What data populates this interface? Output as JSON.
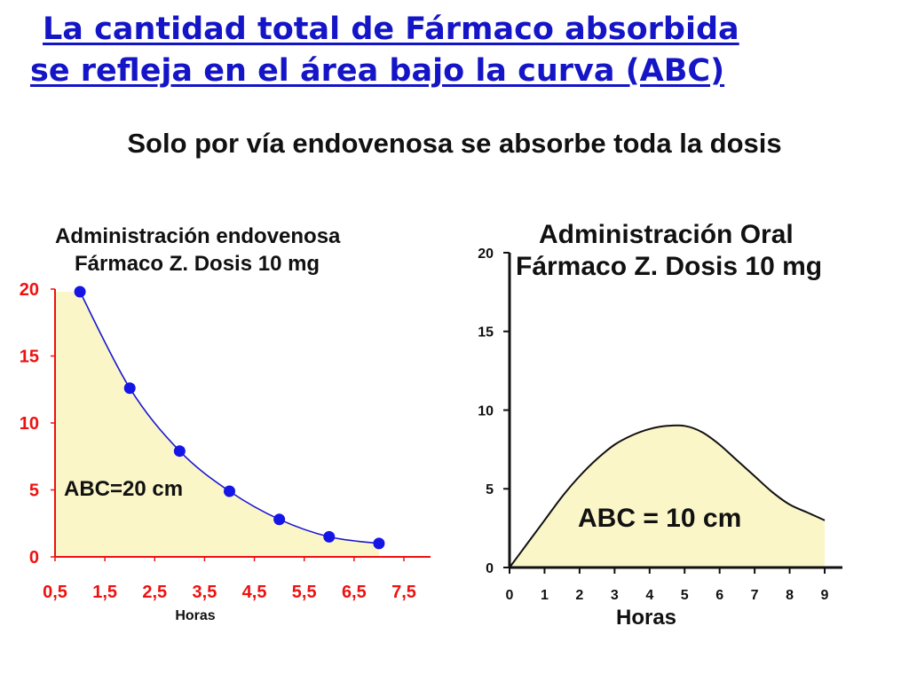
{
  "slide": {
    "title_line1": "La cantidad total de Fármaco absorbida",
    "title_line2": "se refleja en el área bajo la curva (ABC)",
    "subtitle": "Solo por vía endovenosa se absorbe toda la dosis"
  },
  "chart_data": [
    {
      "type": "area",
      "title": "Administración endovenosa",
      "subtitle": "Fármaco Z. Dosis 10 mg",
      "xlabel": "Horas",
      "ylabel": "",
      "x_ticks": [
        "0,5",
        "1,5",
        "2,5",
        "3,5",
        "4,5",
        "5,5",
        "6,5",
        "7,5"
      ],
      "x_tick_values": [
        0.5,
        1.5,
        2.5,
        3.5,
        4.5,
        5.5,
        6.5,
        7.5
      ],
      "y_ticks": [
        "0",
        "5",
        "10",
        "15",
        "20"
      ],
      "y_tick_values": [
        0,
        5,
        10,
        15,
        20
      ],
      "xlim": [
        0.5,
        7.5
      ],
      "ylim": [
        0,
        20
      ],
      "grid": false,
      "markers": true,
      "x": [
        1.0,
        2.0,
        3.0,
        4.0,
        5.0,
        6.0,
        7.0
      ],
      "y": [
        19.8,
        12.6,
        7.9,
        4.9,
        2.8,
        1.5,
        1.0
      ],
      "annotation": "ABC=20 cm",
      "colors": {
        "line": "#1818d0",
        "marker": "#1515e6",
        "fill": "#fbf6c8",
        "axis": "#ee1111",
        "tick_labels": "#ee1111"
      }
    },
    {
      "type": "area",
      "title": "Administración Oral",
      "subtitle": "Fármaco Z. Dosis 10 mg",
      "xlabel": "Horas",
      "ylabel": "",
      "x_ticks": [
        "0",
        "1",
        "2",
        "3",
        "4",
        "5",
        "6",
        "7",
        "8",
        "9"
      ],
      "x_tick_values": [
        0,
        1,
        2,
        3,
        4,
        5,
        6,
        7,
        8,
        9
      ],
      "y_ticks": [
        "0",
        "5",
        "10",
        "15",
        "20"
      ],
      "y_tick_values": [
        0,
        5,
        10,
        15,
        20
      ],
      "xlim": [
        0,
        9
      ],
      "ylim": [
        0,
        20
      ],
      "grid": false,
      "markers": false,
      "x": [
        0,
        0.5,
        1,
        1.5,
        2,
        2.5,
        3,
        3.5,
        4,
        4.5,
        5,
        5.5,
        6,
        6.5,
        7,
        7.5,
        8,
        8.5,
        9
      ],
      "y": [
        0,
        1.5,
        3.0,
        4.5,
        5.8,
        6.9,
        7.8,
        8.4,
        8.8,
        9.0,
        9.0,
        8.6,
        7.8,
        6.8,
        5.8,
        4.8,
        4.0,
        3.5,
        3.0
      ],
      "annotation": "ABC = 10 cm",
      "colors": {
        "line": "#111111",
        "fill": "#fbf6c8",
        "axis": "#111111",
        "tick_labels": "#111111"
      }
    }
  ]
}
